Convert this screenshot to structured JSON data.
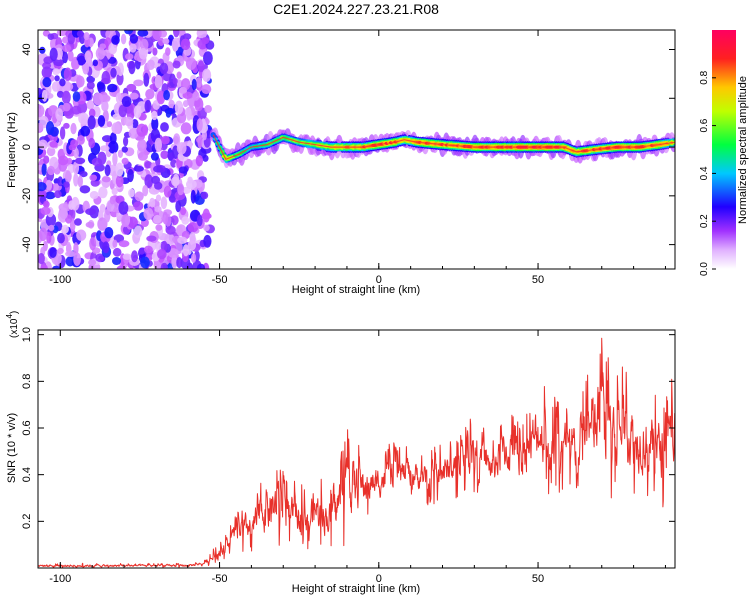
{
  "title": "C2E1.2024.227.23.21.R08",
  "chart_data": [
    {
      "type": "heatmap",
      "xlabel": "Height of straight line (km)",
      "ylabel": "Frequency (Hz)",
      "xlim": [
        -107,
        93
      ],
      "ylim": [
        -50,
        48
      ],
      "xticks": [
        -100,
        -50,
        0,
        50
      ],
      "yticks": [
        40,
        20,
        0,
        -20,
        -40
      ],
      "colorbar": {
        "label": "Normalized spectral amplitude",
        "range": [
          0,
          1
        ],
        "ticks": [
          "0.0",
          "0.2",
          "0.4",
          "0.6",
          "0.8"
        ],
        "colors": [
          "#ffffff",
          "#c04cff",
          "#1c00ff",
          "#00c8ff",
          "#00ff50",
          "#c8ff00",
          "#ffc800",
          "#ff2020",
          "#ff0060"
        ]
      },
      "noise_region": {
        "x_range": [
          -107,
          -53
        ],
        "y_range": [
          -50,
          48
        ]
      },
      "signal_ridge": [
        {
          "x": -52,
          "y": 5,
          "amp": 0.35
        },
        {
          "x": -48,
          "y": -5,
          "amp": 0.65
        },
        {
          "x": -44,
          "y": -3,
          "amp": 0.5
        },
        {
          "x": -40,
          "y": 0,
          "amp": 0.45
        },
        {
          "x": -35,
          "y": 1,
          "amp": 0.5
        },
        {
          "x": -30,
          "y": 4,
          "amp": 0.55
        },
        {
          "x": -25,
          "y": 2,
          "amp": 0.55
        },
        {
          "x": -20,
          "y": 1,
          "amp": 0.65
        },
        {
          "x": -15,
          "y": 0,
          "amp": 0.7
        },
        {
          "x": -10,
          "y": 0,
          "amp": 0.8
        },
        {
          "x": -5,
          "y": 0,
          "amp": 0.8
        },
        {
          "x": 0,
          "y": 1,
          "amp": 0.85
        },
        {
          "x": 5,
          "y": 2,
          "amp": 0.85
        },
        {
          "x": 8,
          "y": 3,
          "amp": 0.75
        },
        {
          "x": 12,
          "y": 2,
          "amp": 0.85
        },
        {
          "x": 20,
          "y": 1,
          "amp": 0.85
        },
        {
          "x": 30,
          "y": 0,
          "amp": 0.85
        },
        {
          "x": 40,
          "y": 0,
          "amp": 0.9
        },
        {
          "x": 50,
          "y": 0,
          "amp": 0.9
        },
        {
          "x": 58,
          "y": 0,
          "amp": 0.85
        },
        {
          "x": 62,
          "y": -2,
          "amp": 0.8
        },
        {
          "x": 68,
          "y": -1,
          "amp": 0.85
        },
        {
          "x": 75,
          "y": 0,
          "amp": 0.9
        },
        {
          "x": 82,
          "y": 0,
          "amp": 0.85
        },
        {
          "x": 88,
          "y": 1,
          "amp": 0.85
        },
        {
          "x": 93,
          "y": 2,
          "amp": 0.7
        }
      ]
    },
    {
      "type": "line",
      "xlabel": "Height of straight line (km)",
      "ylabel": "SNR (10 * v/v)",
      "y_multiplier": "(x10",
      "y_multiplier_exp": "4",
      "y_multiplier_close": ")",
      "xlim": [
        -107,
        93
      ],
      "ylim": [
        0,
        1.02
      ],
      "xticks": [
        -100,
        -50,
        0,
        50
      ],
      "yticks": [
        0.2,
        0.4,
        0.6,
        0.8,
        1.0
      ],
      "color": "#e8302a",
      "envelope": {
        "x": [
          -107,
          -60,
          -55,
          -52,
          -48,
          -44,
          -40,
          -35,
          -30,
          -25,
          -20,
          -15,
          -10,
          -5,
          0,
          5,
          10,
          15,
          20,
          25,
          30,
          35,
          40,
          45,
          50,
          55,
          60,
          65,
          70,
          75,
          80,
          85,
          90,
          93
        ],
        "lo": [
          0.0,
          0.0,
          0.01,
          0.01,
          0.04,
          0.06,
          0.06,
          0.06,
          0.08,
          0.07,
          0.08,
          0.07,
          0.1,
          0.2,
          0.25,
          0.25,
          0.3,
          0.25,
          0.28,
          0.3,
          0.32,
          0.3,
          0.3,
          0.28,
          0.35,
          0.3,
          0.3,
          0.28,
          0.25,
          0.28,
          0.3,
          0.3,
          0.25,
          0.3
        ],
        "hi": [
          0.02,
          0.02,
          0.03,
          0.08,
          0.15,
          0.26,
          0.3,
          0.47,
          0.42,
          0.36,
          0.42,
          0.35,
          0.62,
          0.5,
          0.5,
          0.55,
          0.52,
          0.5,
          0.55,
          0.55,
          0.68,
          0.56,
          0.71,
          0.62,
          0.82,
          0.74,
          0.72,
          0.85,
          1.02,
          0.9,
          0.82,
          0.76,
          0.72,
          0.86
        ]
      }
    }
  ]
}
